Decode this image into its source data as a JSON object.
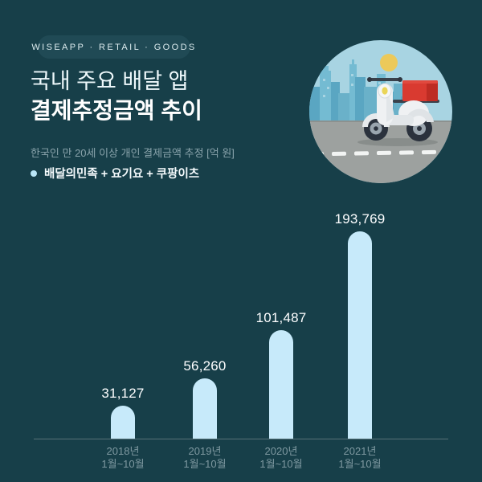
{
  "badge": {
    "label": "WISEAPP · RETAIL · GOODS"
  },
  "header": {
    "title_line1": "국내 주요 배달 앱",
    "title_line2": "결제추정금액 추이",
    "subtitle": "한국인 만 20세 이상 개인 결제금액 추정 [억 원]",
    "legend_label": "배달의민족 + 요기요 + 쿠팡이츠"
  },
  "illustration": {
    "icon": "delivery-scooter-city-illustration",
    "elements": [
      "sun",
      "city-skyline",
      "road",
      "white-scooter",
      "red-delivery-box"
    ]
  },
  "chart_data": {
    "type": "bar",
    "title": "국내 주요 배달 앱 결제추정금액 추이",
    "unit": "억 원",
    "legend": [
      "배달의민족 + 요기요 + 쿠팡이츠"
    ],
    "categories": [
      "2018년 1월~10월",
      "2019년 1월~10월",
      "2020년 1월~10월",
      "2021년 1월~10월"
    ],
    "category_line1": [
      "2018년",
      "2019년",
      "2020년",
      "2021년"
    ],
    "category_line2": [
      "1월~10월",
      "1월~10월",
      "1월~10월",
      "1월~10월"
    ],
    "values": [
      31127,
      56260,
      101487,
      193769
    ],
    "value_labels": [
      "31,127",
      "56,260",
      "101,487",
      "193,769"
    ],
    "ylim": [
      0,
      200000
    ],
    "grid": false,
    "legend_position": "top-left",
    "bar_color": "#c7eafa"
  },
  "colors": {
    "background": "#173f49",
    "badge_background": "#204a55",
    "bar": "#c7eafa",
    "accent_text": "#ffffff",
    "muted_text": "#89a3ab",
    "box_red": "#d93a30"
  }
}
